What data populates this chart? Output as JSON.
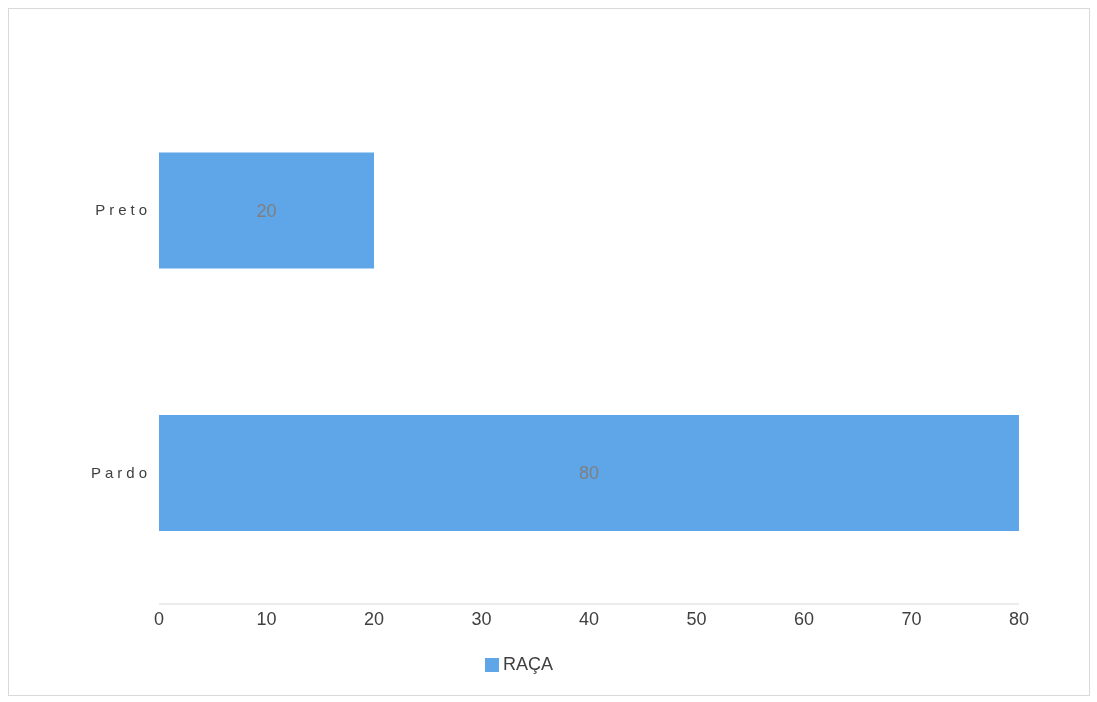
{
  "chart_data": {
    "type": "bar",
    "orientation": "horizontal",
    "categories": [
      "Preto",
      "Pardo"
    ],
    "series": [
      {
        "name": "RAÇA",
        "color": "#5ea6e8",
        "values": [
          20,
          80
        ]
      }
    ],
    "xlim": [
      0,
      80
    ],
    "xticks": [
      0,
      10,
      20,
      30,
      40,
      50,
      60,
      70,
      80
    ],
    "data_labels": true,
    "legend": "bottom",
    "grid": false
  }
}
